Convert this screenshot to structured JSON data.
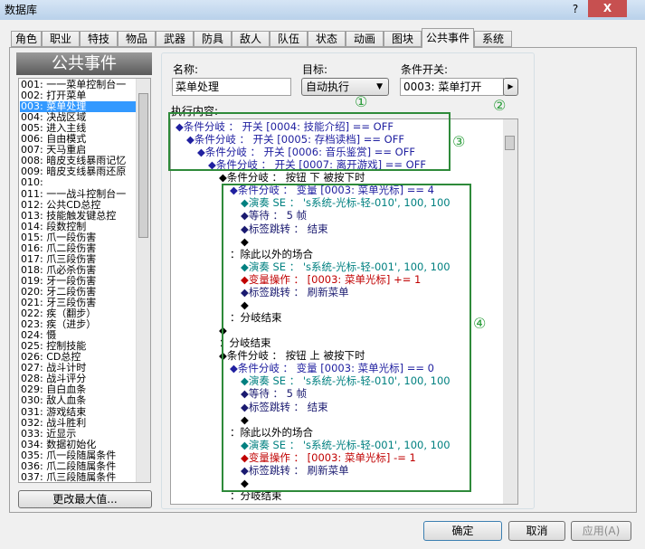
{
  "window": {
    "title": "数据库",
    "help": "?",
    "close": "X"
  },
  "tabs": [
    "角色",
    "职业",
    "特技",
    "物品",
    "武器",
    "防具",
    "敌人",
    "队伍",
    "状态",
    "动画",
    "图块",
    "公共事件",
    "系统"
  ],
  "active_tab": 11,
  "left_panel": {
    "header": "公共事件",
    "selected": 2,
    "button": "更改最大值...",
    "items": [
      "001: 一一菜单控制台一",
      "002: 打开菜单",
      "003: 菜单处理",
      "004: 决战区域",
      "005: 进入主线",
      "006: 自由模式",
      "007: 天马重启",
      "008: 暗皮支线暴雨记忆",
      "009: 暗皮支线暴雨还原",
      "010:",
      "011: 一一战斗控制台一",
      "012: 公共CD总控",
      "013: 技能触发键总控",
      "014: 段数控制",
      "015: 爪一段伤害",
      "016: 爪二段伤害",
      "017: 爪三段伤害",
      "018: 爪必杀伤害",
      "019: 牙一段伤害",
      "020: 牙二段伤害",
      "021: 牙三段伤害",
      "022: 疾（翻步）",
      "023: 疾（进步）",
      "024: 慑",
      "025: 控制技能",
      "026: CD总控",
      "027: 战斗计时",
      "028: 战斗评分",
      "029: 自白血条",
      "030: 敌人血条",
      "031: 游戏结束",
      "032: 战斗胜利",
      "033: 近显示",
      "034: 数据初始化",
      "035: 爪一段随属条件",
      "036: 爪二段随属条件",
      "037: 爪三段随属条件"
    ]
  },
  "right_panel": {
    "name_label": "名称:",
    "name": "菜单处理",
    "target_label": "目标:",
    "target": "自动执行",
    "switch_label": "条件开关:",
    "switch": "0003: 菜单打开",
    "content_label": "执行内容:",
    "lines": [
      "◆条件分岐 ： 开关 [0004: 技能介绍] == OFF",
      "◆条件分岐 ： 开关 [0005: 存档读档] == OFF",
      "◆条件分岐 ： 开关 [0006: 音乐鉴赏] == OFF",
      "◆条件分岐 ： 开关 [0007: 离开游戏] == OFF",
      "◆条件分岐 ： 按钮 下 被按下时",
      "◆条件分岐 ： 变量 [0003: 菜单光标] == 4",
      "◆演奏 SE ： 's系统-光标-轻-010', 100, 100",
      "◆等待 ： 5 帧",
      "◆标签跳转 ： 结束",
      "◆",
      "：除此以外的场合",
      "◆演奏 SE ： 's系统-光标-轻-001', 100, 100",
      "◆变量操作 ： [0003: 菜单光标] += 1",
      "◆标签跳转 ： 刷新菜单",
      "◆",
      "：分岐结束",
      "◆",
      "：分岐结束",
      "◆条件分岐 ： 按钮 上 被按下时",
      "◆条件分岐 ： 变量 [0003: 菜单光标] == 0",
      "◆演奏 SE ： 's系统-光标-轻-010', 100, 100",
      "◆等待 ： 5 帧",
      "◆标签跳转 ： 结束",
      "◆",
      "：除此以外的场合",
      "◆演奏 SE ： 's系统-光标-轻-001', 100, 100",
      "◆变量操作 ： [0003: 菜单光标] -= 1",
      "◆标签跳转 ： 刷新菜单",
      "◆",
      "：分岐结束"
    ]
  },
  "annotations": [
    "①",
    "②",
    "③",
    "④"
  ],
  "buttons": [
    "确定",
    "取消",
    "应用(A)"
  ]
}
